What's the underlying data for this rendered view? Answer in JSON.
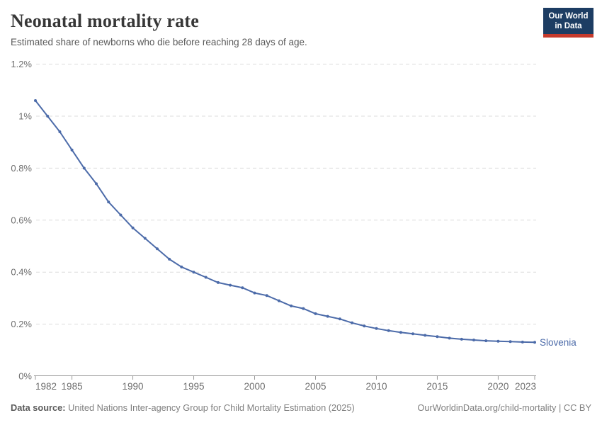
{
  "header": {
    "title": "Neonatal mortality rate",
    "subtitle": "Estimated share of newborns who die before reaching 28 days of age.",
    "logo": {
      "line1": "Our World",
      "line2": "in Data"
    }
  },
  "footer": {
    "source_label": "Data source:",
    "source_text": " United Nations Inter-agency Group for Child Mortality Estimation (2025)",
    "license_text": "OurWorldinData.org/child-mortality | CC BY"
  },
  "colors": {
    "series_blue": "#4c6ba9",
    "grid": "#dcdcdc",
    "axis": "#999999",
    "tick_label": "#6e6e6e",
    "logo_navy": "#1d3d63",
    "logo_red": "#c63a2c"
  },
  "chart_data": {
    "type": "line",
    "title": "Neonatal mortality rate",
    "xlabel": "",
    "ylabel": "",
    "xlim": [
      1982,
      2023
    ],
    "ylim": [
      0,
      1.2
    ],
    "grid": "horizontal-dashed",
    "legend_position": "end-of-line-label",
    "x_ticks": [
      1982,
      1985,
      1990,
      1995,
      2000,
      2005,
      2010,
      2015,
      2020,
      2023
    ],
    "y_ticks": [
      {
        "value": 0,
        "label": "0%"
      },
      {
        "value": 0.2,
        "label": "0.2%"
      },
      {
        "value": 0.4,
        "label": "0.4%"
      },
      {
        "value": 0.6,
        "label": "0.6%"
      },
      {
        "value": 0.8,
        "label": "0.8%"
      },
      {
        "value": 1.0,
        "label": "1%"
      },
      {
        "value": 1.2,
        "label": "1.2%"
      }
    ],
    "series": [
      {
        "name": "Slovenia",
        "color": "#4c6ba9",
        "x": [
          1982,
          1983,
          1984,
          1985,
          1986,
          1987,
          1988,
          1989,
          1990,
          1991,
          1992,
          1993,
          1994,
          1995,
          1996,
          1997,
          1998,
          1999,
          2000,
          2001,
          2002,
          2003,
          2004,
          2005,
          2006,
          2007,
          2008,
          2009,
          2010,
          2011,
          2012,
          2013,
          2014,
          2015,
          2016,
          2017,
          2018,
          2019,
          2020,
          2021,
          2022,
          2023
        ],
        "values": [
          1.06,
          1.0,
          0.94,
          0.87,
          0.8,
          0.74,
          0.67,
          0.62,
          0.57,
          0.53,
          0.49,
          0.45,
          0.42,
          0.4,
          0.38,
          0.36,
          0.35,
          0.34,
          0.32,
          0.31,
          0.29,
          0.27,
          0.26,
          0.24,
          0.23,
          0.22,
          0.205,
          0.193,
          0.183,
          0.175,
          0.168,
          0.163,
          0.157,
          0.152,
          0.146,
          0.142,
          0.139,
          0.136,
          0.134,
          0.133,
          0.131,
          0.13
        ]
      }
    ]
  }
}
